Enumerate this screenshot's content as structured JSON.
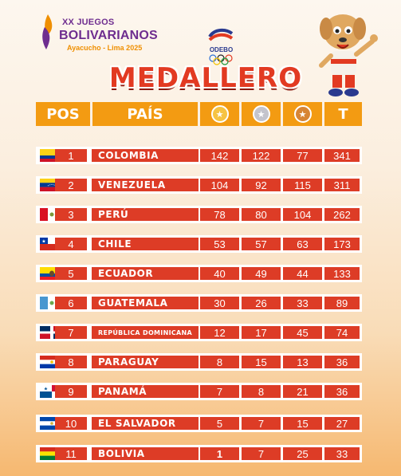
{
  "event": {
    "line1": "XX JUEGOS",
    "line2": "BOLIVARIANOS",
    "line3": "Ayacucho - Lima 2025",
    "org": "ODEBO"
  },
  "title": "MEDALLERO",
  "columns": [
    "POS",
    "PAÍS",
    "gold-medal-icon",
    "silver-medal-icon",
    "bronze-medal-icon",
    "T"
  ],
  "total_label": "T",
  "colors": {
    "header": "#f39b12",
    "cell": "#dd3c26",
    "title": "#e23a22"
  },
  "rows": [
    {
      "pos": "1",
      "country": "COLOMBIA",
      "gold": "142",
      "silver": "122",
      "bronze": "77",
      "total": "341",
      "flag": "colombia-flag-icon"
    },
    {
      "pos": "2",
      "country": "VENEZUELA",
      "gold": "104",
      "silver": "92",
      "bronze": "115",
      "total": "311",
      "flag": "venezuela-flag-icon"
    },
    {
      "pos": "3",
      "country": "PERÚ",
      "gold": "78",
      "silver": "80",
      "bronze": "104",
      "total": "262",
      "flag": "peru-flag-icon"
    },
    {
      "pos": "4",
      "country": "CHILE",
      "gold": "53",
      "silver": "57",
      "bronze": "63",
      "total": "173",
      "flag": "chile-flag-icon"
    },
    {
      "pos": "5",
      "country": "ECUADOR",
      "gold": "40",
      "silver": "49",
      "bronze": "44",
      "total": "133",
      "flag": "ecuador-flag-icon"
    },
    {
      "pos": "6",
      "country": "GUATEMALA",
      "gold": "30",
      "silver": "26",
      "bronze": "33",
      "total": "89",
      "flag": "guatemala-flag-icon"
    },
    {
      "pos": "7",
      "country": "REPÚBLICA DOMINICANA",
      "gold": "12",
      "silver": "17",
      "bronze": "45",
      "total": "74",
      "flag": "dominican-republic-flag-icon"
    },
    {
      "pos": "8",
      "country": "PARAGUAY",
      "gold": "8",
      "silver": "15",
      "bronze": "13",
      "total": "36",
      "flag": "paraguay-flag-icon"
    },
    {
      "pos": "9",
      "country": "PANAMÁ",
      "gold": "7",
      "silver": "8",
      "bronze": "21",
      "total": "36",
      "flag": "panama-flag-icon"
    },
    {
      "pos": "10",
      "country": "EL SALVADOR",
      "gold": "5",
      "silver": "7",
      "bronze": "15",
      "total": "27",
      "flag": "el-salvador-flag-icon"
    },
    {
      "pos": "11",
      "country": "BOLIVIA",
      "gold": "1",
      "silver": "7",
      "bronze": "25",
      "total": "33",
      "flag": "bolivia-flag-icon"
    }
  ]
}
